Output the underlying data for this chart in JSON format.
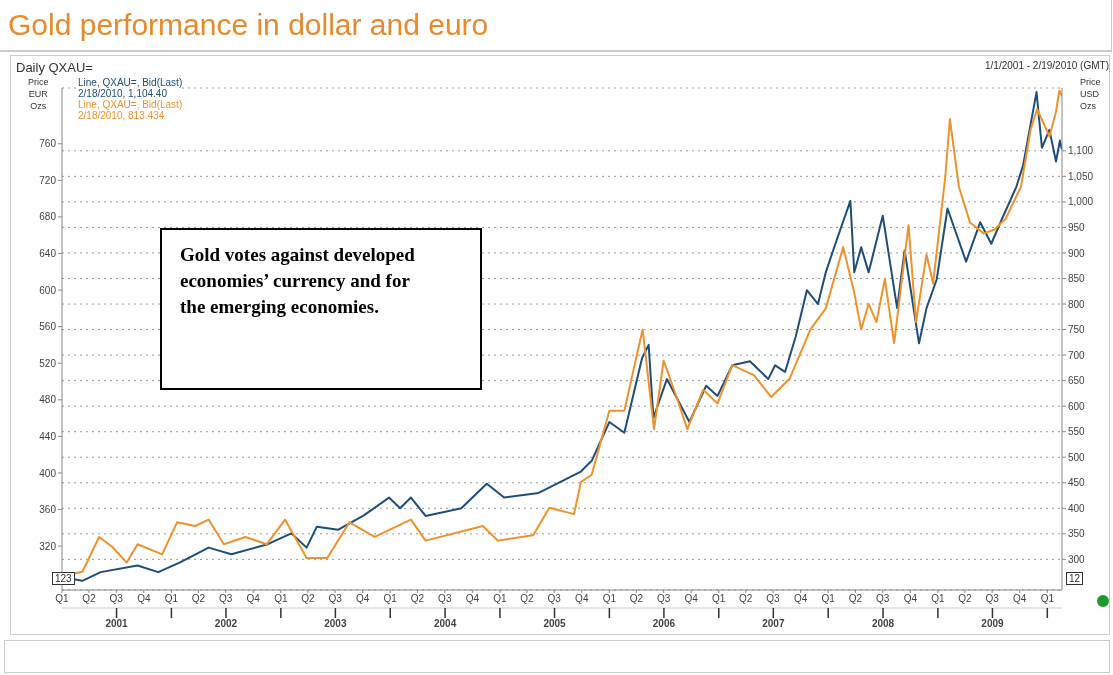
{
  "chart_data": {
    "type": "line",
    "title": "Gold performance in dollar and euro",
    "subtitle": "Daily QXAU=",
    "ylabel": "Price\nEUR\nOzs",
    "y2label": "Price\nUSD\nOzs",
    "annotations": [
      "1/1/2001 - 2/19/2010 (GMT)",
      "Gold votes against developed economies’ currency and for the emerging economies.",
      "123",
      "12"
    ],
    "legend": "top left",
    "grid": "y",
    "xlim": [
      "2001-01-01",
      "2010-02-19"
    ],
    "xticks": [
      {
        "value": "2001-01-01",
        "label": "Q1"
      },
      {
        "value": "2001-04-01",
        "label": "Q2"
      },
      {
        "value": "2001-07-01",
        "label": "Q3"
      },
      {
        "value": "2001-10-01",
        "label": "Q4"
      },
      {
        "value": "2002-01-01",
        "label": "Q1"
      },
      {
        "value": "2002-04-01",
        "label": "Q2"
      },
      {
        "value": "2002-07-01",
        "label": "Q3"
      },
      {
        "value": "2002-10-01",
        "label": "Q4"
      },
      {
        "value": "2003-01-01",
        "label": "Q1"
      },
      {
        "value": "2003-04-01",
        "label": "Q2"
      },
      {
        "value": "2003-07-01",
        "label": "Q3"
      },
      {
        "value": "2003-10-01",
        "label": "Q4"
      },
      {
        "value": "2004-01-01",
        "label": "Q1"
      },
      {
        "value": "2004-04-01",
        "label": "Q2"
      },
      {
        "value": "2004-07-01",
        "label": "Q3"
      },
      {
        "value": "2004-10-01",
        "label": "Q4"
      },
      {
        "value": "2005-01-01",
        "label": "Q1"
      },
      {
        "value": "2005-04-01",
        "label": "Q2"
      },
      {
        "value": "2005-07-01",
        "label": "Q3"
      },
      {
        "value": "2005-10-01",
        "label": "Q4"
      },
      {
        "value": "2006-01-01",
        "label": "Q1"
      },
      {
        "value": "2006-04-01",
        "label": "Q2"
      },
      {
        "value": "2006-07-01",
        "label": "Q3"
      },
      {
        "value": "2006-10-01",
        "label": "Q4"
      },
      {
        "value": "2007-01-01",
        "label": "Q1"
      },
      {
        "value": "2007-04-01",
        "label": "Q2"
      },
      {
        "value": "2007-07-01",
        "label": "Q3"
      },
      {
        "value": "2007-10-01",
        "label": "Q4"
      },
      {
        "value": "2008-01-01",
        "label": "Q1"
      },
      {
        "value": "2008-04-01",
        "label": "Q2"
      },
      {
        "value": "2008-07-01",
        "label": "Q3"
      },
      {
        "value": "2008-10-01",
        "label": "Q4"
      },
      {
        "value": "2009-01-01",
        "label": "Q1"
      },
      {
        "value": "2009-04-01",
        "label": "Q2"
      },
      {
        "value": "2009-07-01",
        "label": "Q3"
      },
      {
        "value": "2009-10-01",
        "label": "Q4"
      },
      {
        "value": "2010-01-01",
        "label": "Q1"
      }
    ],
    "x2lim": [
      "2001-01-01",
      "2010-02-19"
    ],
    "x2ticks": [
      {
        "value": "2001-07-02",
        "label": "2001"
      },
      {
        "value": "2002-01-01",
        "label": null
      },
      {
        "value": "2002-07-02",
        "label": "2002"
      },
      {
        "value": "2003-01-01",
        "label": null
      },
      {
        "value": "2003-07-02",
        "label": "2003"
      },
      {
        "value": "2004-01-01",
        "label": null
      },
      {
        "value": "2004-07-02",
        "label": "2004"
      },
      {
        "value": "2005-01-01",
        "label": null
      },
      {
        "value": "2005-07-02",
        "label": "2005"
      },
      {
        "value": "2006-01-01",
        "label": null
      },
      {
        "value": "2006-07-02",
        "label": "2006"
      },
      {
        "value": "2007-01-01",
        "label": null
      },
      {
        "value": "2007-07-02",
        "label": "2007"
      },
      {
        "value": "2008-01-01",
        "label": null
      },
      {
        "value": "2008-07-02",
        "label": "2008"
      },
      {
        "value": "2009-01-01",
        "label": null
      },
      {
        "value": "2009-07-02",
        "label": "2009"
      },
      {
        "value": "2010-01-01",
        "label": null
      }
    ],
    "ylim": [
      272,
      821
    ],
    "yticks": [
      320,
      360,
      400,
      440,
      480,
      520,
      560,
      600,
      640,
      680,
      720,
      760
    ],
    "y2lim": [
      240,
      1223
    ],
    "y2ticks": [
      300,
      350,
      400,
      450,
      500,
      550,
      600,
      650,
      700,
      750,
      800,
      850,
      900,
      950,
      {
        "value": 1000,
        "label": "1,000"
      },
      {
        "value": 1050,
        "label": "1,050"
      },
      {
        "value": 1100,
        "label": "1,100"
      }
    ],
    "series": [
      {
        "name": "Line, QXAU=, Bid(Last)\n2/18/2010, 1,104.40",
        "color": "#1f4e79",
        "axis": "y2",
        "x": [
          "2001-01-02",
          "2001-03-10",
          "2001-05-10",
          "2001-09-10",
          "2001-11-18",
          "2002-01-30",
          "2002-05-05",
          "2002-07-20",
          "2002-11-15",
          "2003-02-05",
          "2003-03-28",
          "2003-05-01",
          "2003-07-12",
          "2003-10-05",
          "2003-12-28",
          "2004-02-03",
          "2004-03-10",
          "2004-04-28",
          "2004-08-25",
          "2004-11-18",
          "2005-01-15",
          "2005-05-10",
          "2005-09-28",
          "2005-11-03",
          "2006-01-01",
          "2006-02-20",
          "2006-04-20",
          "2006-05-12",
          "2006-05-28",
          "2006-07-12",
          "2006-09-25",
          "2006-11-20",
          "2006-12-28",
          "2007-02-15",
          "2007-04-15",
          "2007-06-15",
          "2007-07-08",
          "2007-08-10",
          "2007-09-15",
          "2007-10-22",
          "2007-11-28",
          "2007-12-24",
          "2008-01-25",
          "2008-03-15",
          "2008-03-28",
          "2008-04-20",
          "2008-05-15",
          "2008-07-01",
          "2008-08-18",
          "2008-09-12",
          "2008-10-30",
          "2008-11-24",
          "2008-12-28",
          "2009-02-02",
          "2009-04-05",
          "2009-05-22",
          "2009-06-28",
          "2009-08-03",
          "2009-09-20",
          "2009-10-12",
          "2009-11-26",
          "2009-12-14",
          "2010-01-08",
          "2010-01-30",
          "2010-02-12",
          "2010-02-18"
        ],
        "values": [
          265,
          258,
          275,
          288,
          275,
          294,
          323,
          310,
          329,
          351,
          323,
          364,
          358,
          386,
          421,
          400,
          421,
          385,
          400,
          448,
          421,
          430,
          472,
          493,
          569,
          548,
          694,
          720,
          577,
          653,
          569,
          640,
          620,
          680,
          688,
          653,
          680,
          667,
          737,
          827,
          800,
          862,
          918,
          1002,
          862,
          911,
          862,
          973,
          792,
          905,
          723,
          792,
          848,
          987,
          883,
          960,
          918,
          967,
          1030,
          1071,
          1215,
          1106,
          1141,
          1079,
          1120,
          1104
        ]
      },
      {
        "name": "Line, QXAU=, Bid(Last)\n2/18/2010, 813.434",
        "color": "#f0922b",
        "axis": "y",
        "x": [
          "2001-01-02",
          "2001-03-10",
          "2001-05-05",
          "2001-06-18",
          "2001-08-05",
          "2001-09-10",
          "2001-12-01",
          "2002-01-20",
          "2002-03-22",
          "2002-05-05",
          "2002-06-25",
          "2002-09-05",
          "2002-11-15",
          "2003-01-15",
          "2003-03-28",
          "2003-06-05",
          "2003-08-18",
          "2003-11-10",
          "2004-03-10",
          "2004-04-28",
          "2004-11-05",
          "2004-12-25",
          "2005-04-22",
          "2005-06-15",
          "2005-09-05",
          "2005-09-28",
          "2005-11-03",
          "2006-01-01",
          "2006-02-20",
          "2006-04-22",
          "2006-05-30",
          "2006-07-01",
          "2006-08-08",
          "2006-09-18",
          "2006-11-10",
          "2006-12-28",
          "2007-02-15",
          "2007-04-28",
          "2007-06-25",
          "2007-08-25",
          "2007-11-03",
          "2007-12-24",
          "2008-02-20",
          "2008-03-28",
          "2008-04-20",
          "2008-05-15",
          "2008-06-10",
          "2008-07-08",
          "2008-08-08",
          "2008-09-25",
          "2008-10-20",
          "2008-11-24",
          "2008-12-16",
          "2009-01-26",
          "2009-02-10",
          "2009-03-12",
          "2009-04-18",
          "2009-06-03",
          "2009-07-08",
          "2009-08-15",
          "2009-10-05",
          "2009-11-06",
          "2009-11-28",
          "2010-01-08",
          "2010-01-30",
          "2010-02-10",
          "2010-02-18"
        ],
        "values": [
          287,
          292,
          330,
          319,
          302,
          322,
          311,
          346,
          342,
          349,
          322,
          330,
          322,
          349,
          307,
          307,
          346,
          330,
          349,
          326,
          342,
          326,
          332,
          362,
          355,
          390,
          398,
          468,
          468,
          557,
          448,
          523,
          488,
          448,
          491,
          476,
          518,
          507,
          483,
          503,
          557,
          580,
          647,
          597,
          557,
          585,
          565,
          612,
          542,
          671,
          565,
          639,
          607,
          725,
          787,
          713,
          674,
          662,
          666,
          678,
          713,
          775,
          798,
          768,
          795,
          818,
          813
        ]
      }
    ]
  }
}
